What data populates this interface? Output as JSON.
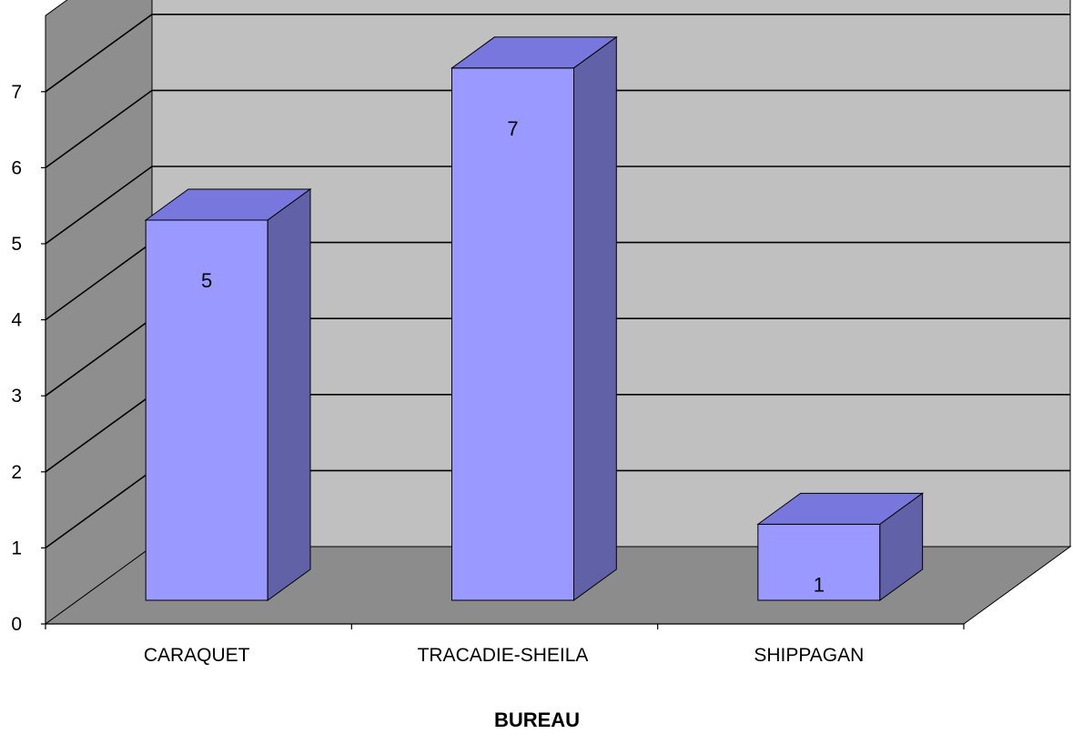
{
  "chart_data": {
    "type": "bar",
    "style": "3d-column",
    "categories": [
      "CARAQUET",
      "TRACADIE-SHEILA",
      "SHIPPAGAN"
    ],
    "values": [
      5,
      7,
      1
    ],
    "data_labels": [
      "5",
      "7",
      "1"
    ],
    "xlabel": "BUREAU",
    "ylabel": "",
    "ylim": [
      0,
      7
    ],
    "yticks": [
      "0",
      "1",
      "2",
      "3",
      "4",
      "5",
      "6",
      "7"
    ],
    "grid": true,
    "legend": "none",
    "colors": {
      "bar_front": "#9999ff",
      "bar_top": "#7777dd",
      "bar_side": "#6161a8",
      "back_wall": "#c0c0c0",
      "side_wall": "#8e8e8e",
      "floor": "#8c8c8c",
      "gridline": "#000000"
    }
  }
}
